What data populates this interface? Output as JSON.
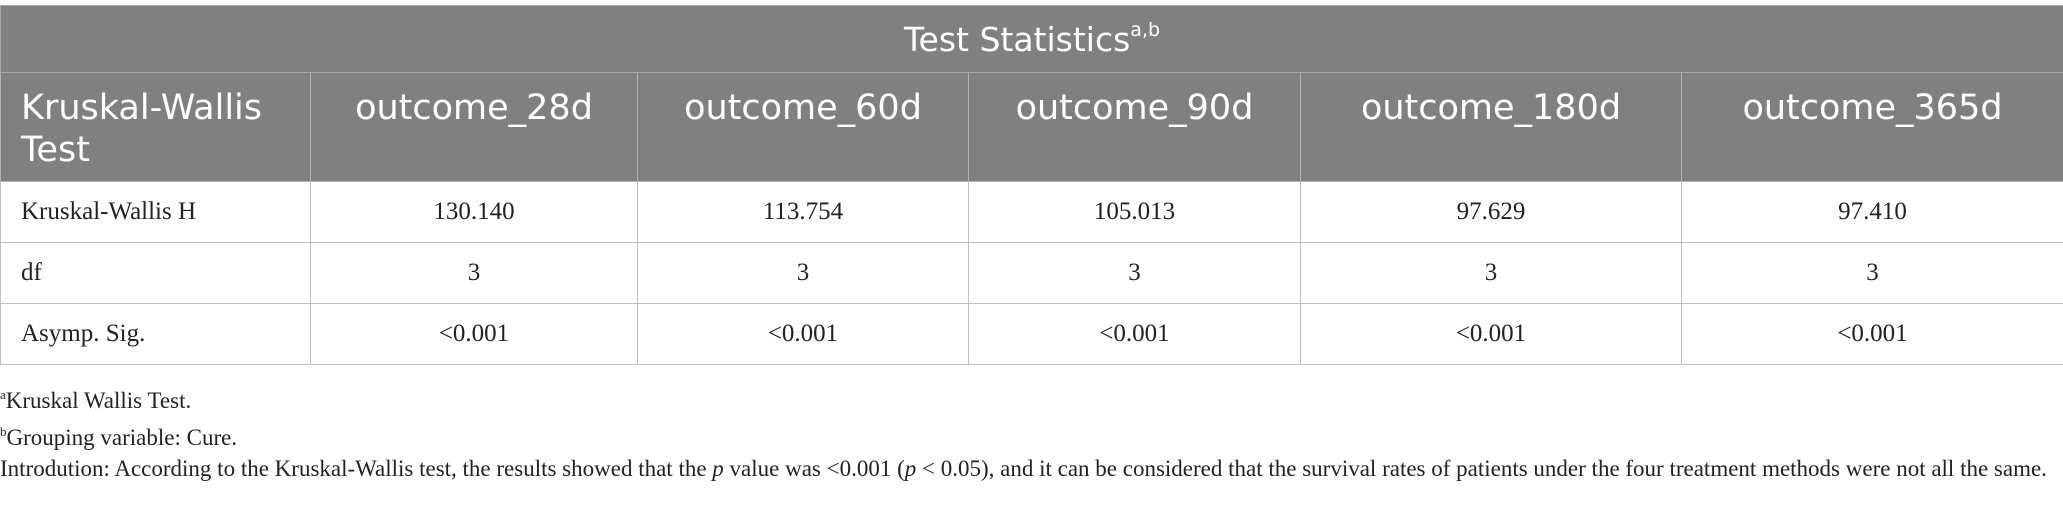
{
  "table": {
    "title": "Test Statistics",
    "title_superscript": "a,b",
    "corner_header": "Kruskal-Wallis Test",
    "columns": [
      "outcome_28d",
      "outcome_60d",
      "outcome_90d",
      "outcome_180d",
      "outcome_365d"
    ],
    "rows": [
      {
        "label": "Kruskal-Wallis H",
        "values": [
          "130.140",
          "113.754",
          "105.013",
          "97.629",
          "97.410"
        ]
      },
      {
        "label": "df",
        "values": [
          "3",
          "3",
          "3",
          "3",
          "3"
        ]
      },
      {
        "label": "Asymp. Sig.",
        "values": [
          "<0.001",
          "<0.001",
          "<0.001",
          "<0.001",
          "<0.001"
        ]
      }
    ]
  },
  "footnotes": {
    "a": {
      "mark": "a",
      "text": "Kruskal Wallis Test."
    },
    "b": {
      "mark": "b",
      "text": "Grouping variable: Cure."
    },
    "intro": {
      "part1": "Introdution: According to the Kruskal-Wallis test, the results showed that the ",
      "p1": "p",
      "part2": " value was <0.001 (",
      "p2": "p",
      "part3": " < 0.05), and it can be considered that the survival rates of patients under the four treatment methods were not all the same."
    }
  },
  "colors": {
    "header_bg": "#808080",
    "header_text": "#ffffff",
    "body_text": "#222222",
    "grid": "#bfbfbf"
  }
}
